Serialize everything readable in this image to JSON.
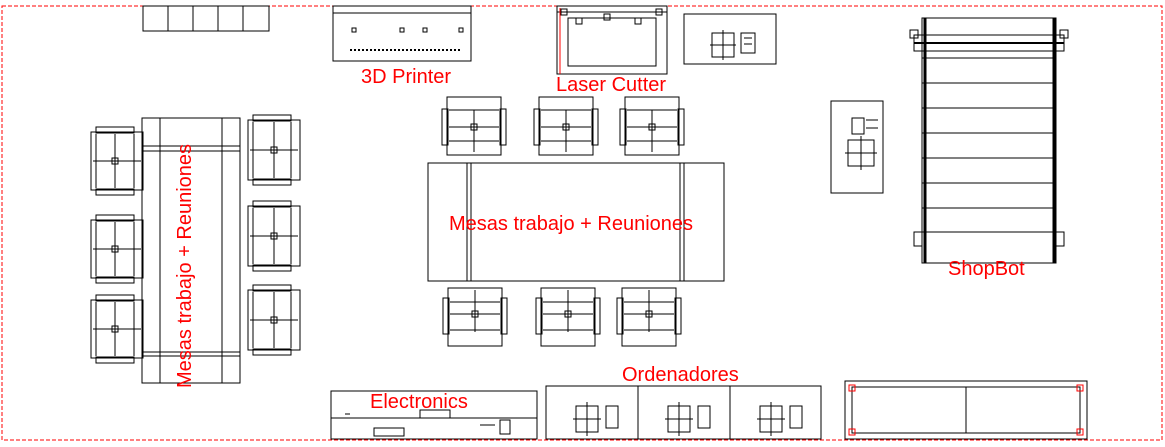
{
  "labels": {
    "printer": "3D Printer",
    "laser": "Laser Cutter",
    "mesas_center": "Mesas trabajo + Reuniones",
    "mesas_left": "Mesas trabajo + Reuniones",
    "shopbot": "ShopBot",
    "ordenadores": "Ordenadores",
    "electronics": "Electronics"
  },
  "colors": {
    "label": "#ff0000",
    "line": "#000000",
    "boundary": "#ff0000"
  }
}
